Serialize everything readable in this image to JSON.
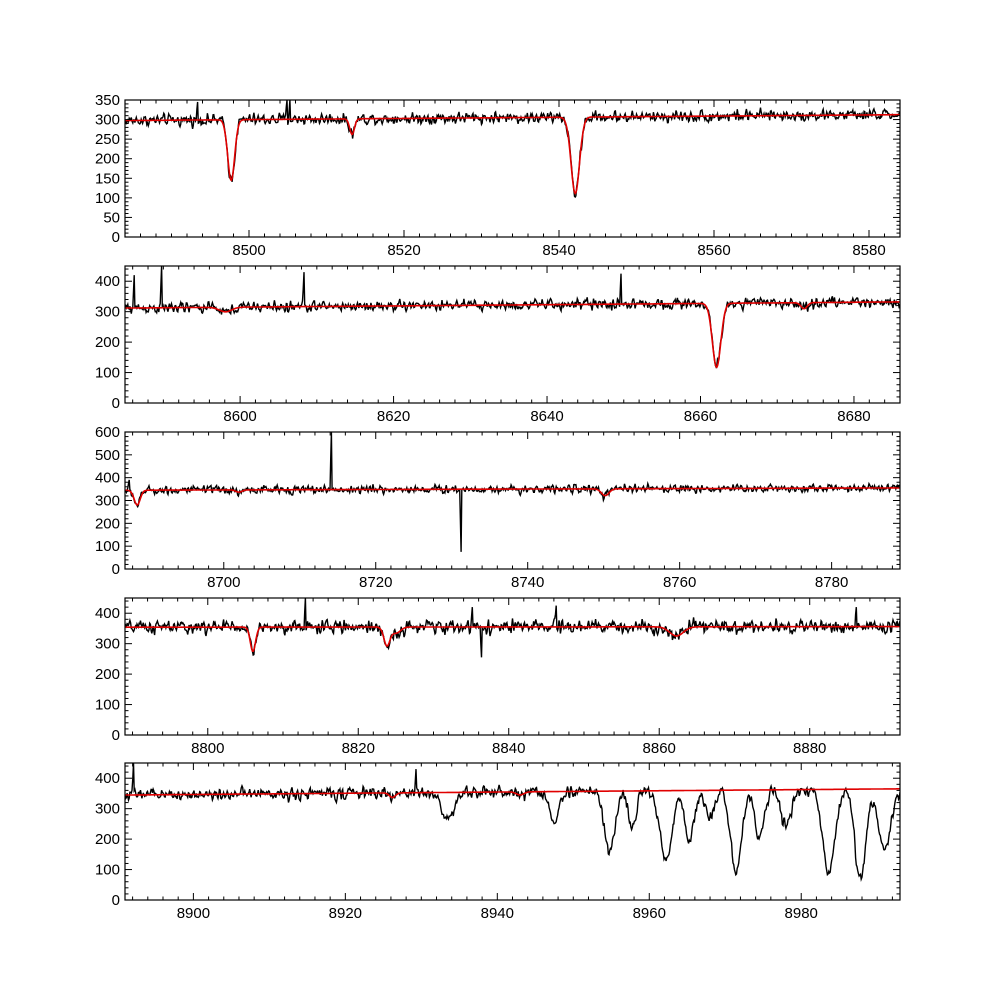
{
  "chart_data": [
    {
      "type": "line",
      "xlim": [
        8484,
        8584
      ],
      "ylim": [
        0,
        350
      ],
      "xticks": [
        8500,
        8520,
        8540,
        8560,
        8580
      ],
      "yticks": [
        0,
        50,
        100,
        150,
        200,
        250,
        300,
        350
      ],
      "continuum": 305,
      "slope": 0.15,
      "noise_amp": 15,
      "spikes": [
        [
          8493.4,
          345
        ],
        [
          8504.9,
          360
        ],
        [
          8505.3,
          350
        ]
      ],
      "absorption": [
        [
          8497.7,
          155,
          0.45
        ],
        [
          8542.1,
          195,
          0.55
        ],
        [
          8513.3,
          40,
          0.3
        ]
      ],
      "series": [
        {
          "name": "",
          "color": "#000000",
          "values": "observed spectrum (noisy)"
        },
        {
          "name": "",
          "color": "#e00000",
          "values": "model fit"
        }
      ]
    },
    {
      "type": "line",
      "xlim": [
        8585,
        8686
      ],
      "ylim": [
        0,
        450
      ],
      "xticks": [
        8600,
        8620,
        8640,
        8660,
        8680
      ],
      "yticks": [
        0,
        100,
        200,
        300,
        400
      ],
      "continuum": 322,
      "slope": 0.2,
      "noise_amp": 18,
      "spikes": [
        [
          8586.2,
          420
        ],
        [
          8589.8,
          450
        ],
        [
          8608.3,
          430
        ],
        [
          8649.6,
          425
        ]
      ],
      "absorption": [
        [
          8662.1,
          210,
          0.55
        ],
        [
          8598.1,
          15,
          0.8
        ],
        [
          8673.5,
          20,
          0.4
        ]
      ],
      "series": [
        {
          "name": "",
          "color": "#000000",
          "values": "observed spectrum (noisy)"
        },
        {
          "name": "",
          "color": "#e00000",
          "values": "model fit"
        }
      ]
    },
    {
      "type": "line",
      "xlim": [
        8687,
        8789
      ],
      "ylim": [
        0,
        600
      ],
      "xticks": [
        8700,
        8720,
        8740,
        8760,
        8780
      ],
      "yticks": [
        0,
        100,
        200,
        300,
        400,
        500,
        600
      ],
      "continuum": 350,
      "slope": 0.1,
      "noise_amp": 18,
      "spikes": [
        [
          8714.2,
          600
        ],
        [
          8731.2,
          75
        ],
        [
          8687.6,
          390
        ]
      ],
      "absorption": [
        [
          8688.6,
          65,
          0.4
        ],
        [
          8750.2,
          30,
          0.5
        ],
        [
          8702.0,
          10,
          0.4
        ]
      ],
      "series": [
        {
          "name": "",
          "color": "#000000",
          "values": "observed spectrum (noisy)"
        },
        {
          "name": "",
          "color": "#e00000",
          "values": "model fit"
        }
      ]
    },
    {
      "type": "line",
      "xlim": [
        8789,
        8892
      ],
      "ylim": [
        0,
        450
      ],
      "xticks": [
        8800,
        8820,
        8840,
        8860,
        8880
      ],
      "yticks": [
        0,
        100,
        200,
        300,
        400
      ],
      "continuum": 355,
      "slope": 0.02,
      "noise_amp": 22,
      "spikes": [
        [
          8813.0,
          450
        ],
        [
          8835.2,
          420
        ],
        [
          8836.4,
          255
        ],
        [
          8846.3,
          425
        ],
        [
          8886.2,
          420
        ]
      ],
      "absorption": [
        [
          8806.0,
          80,
          0.35
        ],
        [
          8823.8,
          60,
          0.4
        ],
        [
          8862.3,
          30,
          0.9
        ],
        [
          8825.0,
          20,
          0.6
        ]
      ],
      "series": [
        {
          "name": "",
          "color": "#000000",
          "values": "observed spectrum (noisy)"
        },
        {
          "name": "",
          "color": "#e00000",
          "values": "model fit"
        }
      ]
    },
    {
      "type": "line",
      "xlim": [
        8891,
        8993
      ],
      "ylim": [
        0,
        450
      ],
      "xticks": [
        8900,
        8920,
        8940,
        8960,
        8980
      ],
      "yticks": [
        0,
        100,
        200,
        300,
        400
      ],
      "continuum": 355,
      "slope": 0.2,
      "noise_amp": 20,
      "spikes": [
        [
          8892.1,
          450
        ],
        [
          8929.3,
          430
        ]
      ],
      "absorption": [
        [
          8926.2,
          15,
          0.4
        ],
        [
          8943.0,
          10,
          0.5
        ]
      ],
      "telluric": [
        [
          8954.8,
          200,
          0.7
        ],
        [
          8962.2,
          230,
          0.8
        ],
        [
          8965.3,
          160,
          0.6
        ],
        [
          8971.4,
          270,
          0.7
        ],
        [
          8974.5,
          150,
          0.6
        ],
        [
          8978.0,
          120,
          0.7
        ],
        [
          8983.6,
          270,
          0.8
        ],
        [
          8987.8,
          300,
          0.7
        ],
        [
          8991.0,
          200,
          0.8
        ],
        [
          8947.5,
          100,
          0.6
        ],
        [
          8933.5,
          90,
          0.8
        ],
        [
          8957.8,
          120,
          0.5
        ],
        [
          8968.0,
          90,
          0.6
        ]
      ],
      "series": [
        {
          "name": "",
          "color": "#000000",
          "values": "observed spectrum (noisy)"
        },
        {
          "name": "",
          "color": "#e00000",
          "values": "model fit"
        }
      ]
    }
  ]
}
